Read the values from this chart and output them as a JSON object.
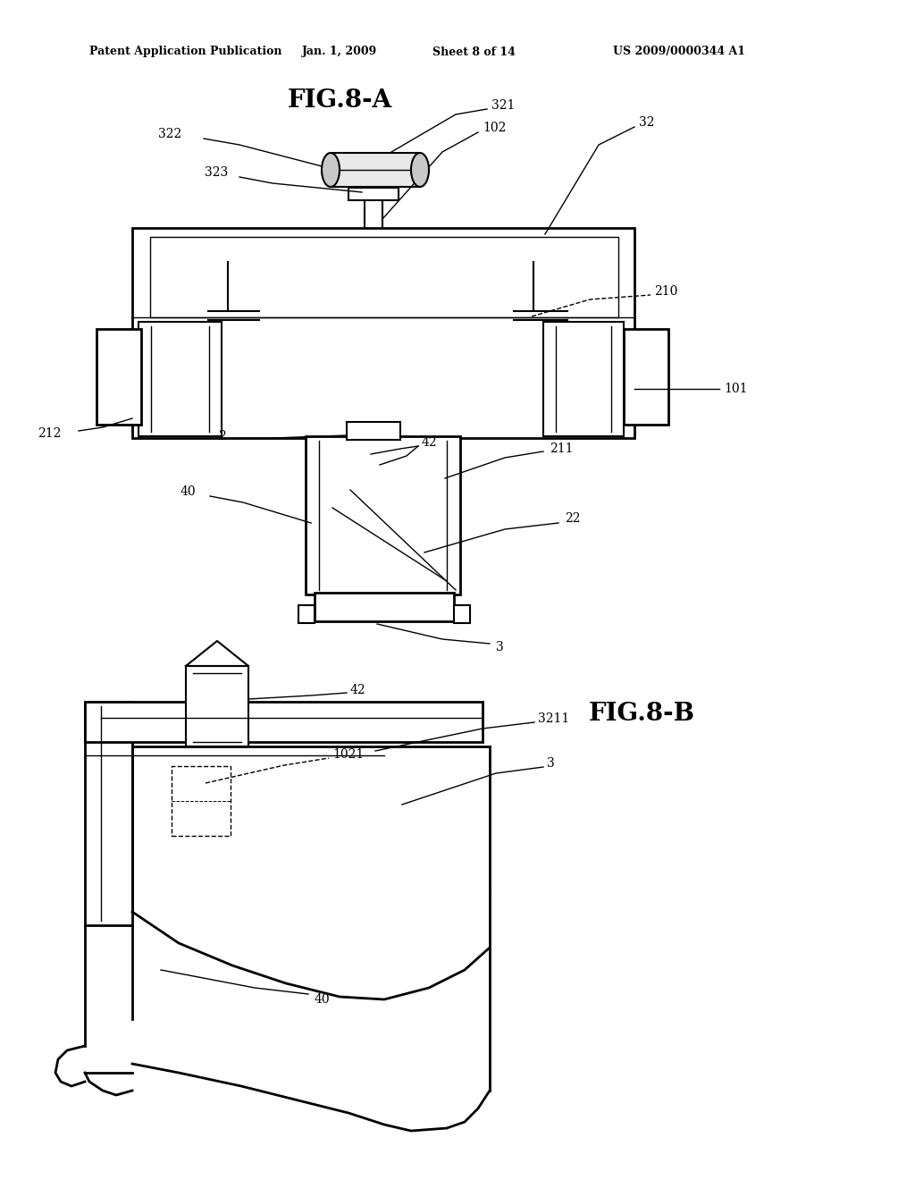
{
  "fig_width": 10.24,
  "fig_height": 13.2,
  "bg_color": "#ffffff",
  "header_text": "Patent Application Publication",
  "header_date": "Jan. 1, 2009",
  "header_sheet": "Sheet 8 of 14",
  "header_patent": "US 2009/0000344 A1",
  "fig8a_title": "FIG.8-A",
  "fig8b_title": "FIG.8-B"
}
